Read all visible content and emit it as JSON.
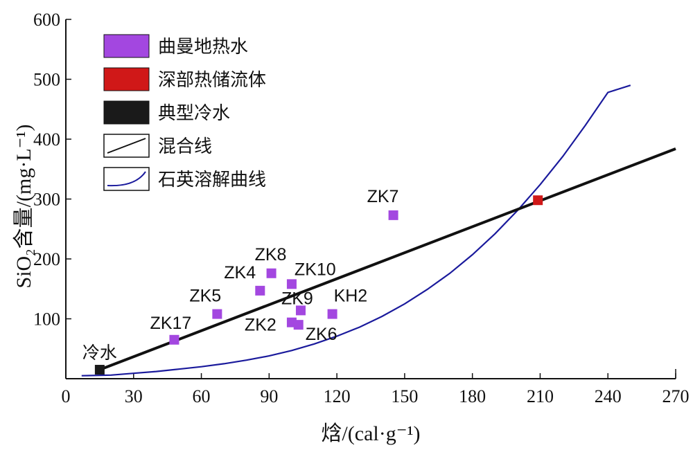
{
  "chart_data": {
    "type": "scatter",
    "xlabel": "焓/(cal·g⁻¹)",
    "ylabel": "SiO₂含量/(mg·L⁻¹)",
    "xlim": [
      0,
      270
    ],
    "ylim": [
      0,
      600
    ],
    "x_ticks": [
      0,
      30,
      60,
      90,
      120,
      150,
      180,
      210,
      240,
      270
    ],
    "y_ticks": [
      100,
      200,
      300,
      400,
      500,
      600
    ],
    "grid": false,
    "legend_position": "top-left",
    "legend": [
      {
        "label": "曲曼地热水",
        "kind": "square",
        "color": "#a347e0"
      },
      {
        "label": "深部热储流体",
        "kind": "square",
        "color": "#d01818"
      },
      {
        "label": "典型冷水",
        "kind": "square",
        "color": "#1a1a1a"
      },
      {
        "label": "混合线",
        "kind": "line",
        "color": "#111111"
      },
      {
        "label": "石英溶解曲线",
        "kind": "curve",
        "color": "#1a1a9c"
      }
    ],
    "series": [
      {
        "name": "曲曼地热水",
        "color": "#a347e0",
        "points": [
          {
            "label": "ZK17",
            "x": 48,
            "y": 65
          },
          {
            "label": "ZK5",
            "x": 67,
            "y": 108
          },
          {
            "label": "ZK4",
            "x": 86,
            "y": 147
          },
          {
            "label": "ZK8",
            "x": 91,
            "y": 176
          },
          {
            "label": "ZK10",
            "x": 100,
            "y": 158
          },
          {
            "label": "ZK2",
            "x": 100,
            "y": 94
          },
          {
            "label": "ZK9",
            "x": 104,
            "y": 114
          },
          {
            "label": "ZK6",
            "x": 103,
            "y": 90
          },
          {
            "label": "KH2",
            "x": 118,
            "y": 108
          },
          {
            "label": "ZK7",
            "x": 145,
            "y": 273
          }
        ]
      },
      {
        "name": "深部热储流体",
        "color": "#d01818",
        "points": [
          {
            "label": "",
            "x": 209,
            "y": 298
          }
        ]
      },
      {
        "name": "典型冷水",
        "color": "#1a1a1a",
        "points": [
          {
            "label": "冷水",
            "x": 15,
            "y": 15
          }
        ]
      }
    ],
    "mixing_line": {
      "name": "混合线",
      "x": [
        15,
        270
      ],
      "y": [
        15,
        384
      ],
      "color": "#111111"
    },
    "quartz_curve": {
      "name": "石英溶解曲线",
      "color": "#1a1a9c",
      "x": [
        7,
        20,
        30,
        40,
        50,
        60,
        70,
        80,
        90,
        100,
        110,
        120,
        130,
        140,
        150,
        160,
        170,
        180,
        190,
        200,
        210,
        220,
        230,
        240,
        250
      ],
      "y": [
        5,
        6,
        9,
        12,
        16,
        20,
        25,
        31,
        38,
        47,
        58,
        71,
        86,
        104,
        125,
        149,
        176,
        207,
        242,
        281,
        324,
        371,
        423,
        478,
        490
      ]
    }
  }
}
